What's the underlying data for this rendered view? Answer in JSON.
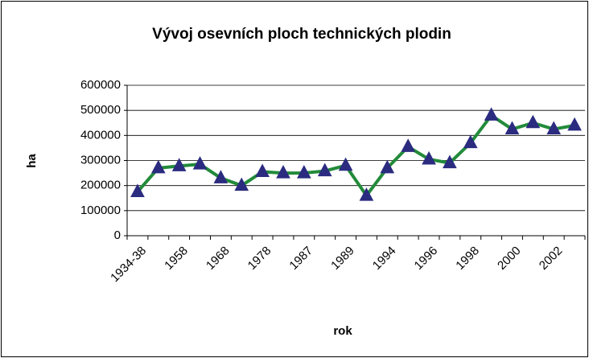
{
  "chart_data": {
    "type": "line",
    "title": "Vývoj osevních ploch technických plodin",
    "x_label": "rok",
    "y_label": "ha",
    "categories": [
      "1934-38",
      null,
      "1958",
      null,
      "1968",
      null,
      "1978",
      null,
      "1987",
      null,
      "1989",
      null,
      "1994",
      null,
      "1996",
      null,
      "1998",
      null,
      "2000",
      null,
      "2002",
      null
    ],
    "series": [
      {
        "name": "ha",
        "color": "#228b3a",
        "marker_color": "#2b2b80",
        "values": [
          175000,
          270000,
          278000,
          285000,
          230000,
          200000,
          255000,
          250000,
          250000,
          258000,
          280000,
          160000,
          270000,
          355000,
          305000,
          290000,
          370000,
          480000,
          425000,
          450000,
          425000,
          440000
        ]
      }
    ],
    "ylim": [
      0,
      600000
    ],
    "yticks": [
      0,
      100000,
      200000,
      300000,
      400000,
      500000,
      600000
    ],
    "grid": true
  }
}
